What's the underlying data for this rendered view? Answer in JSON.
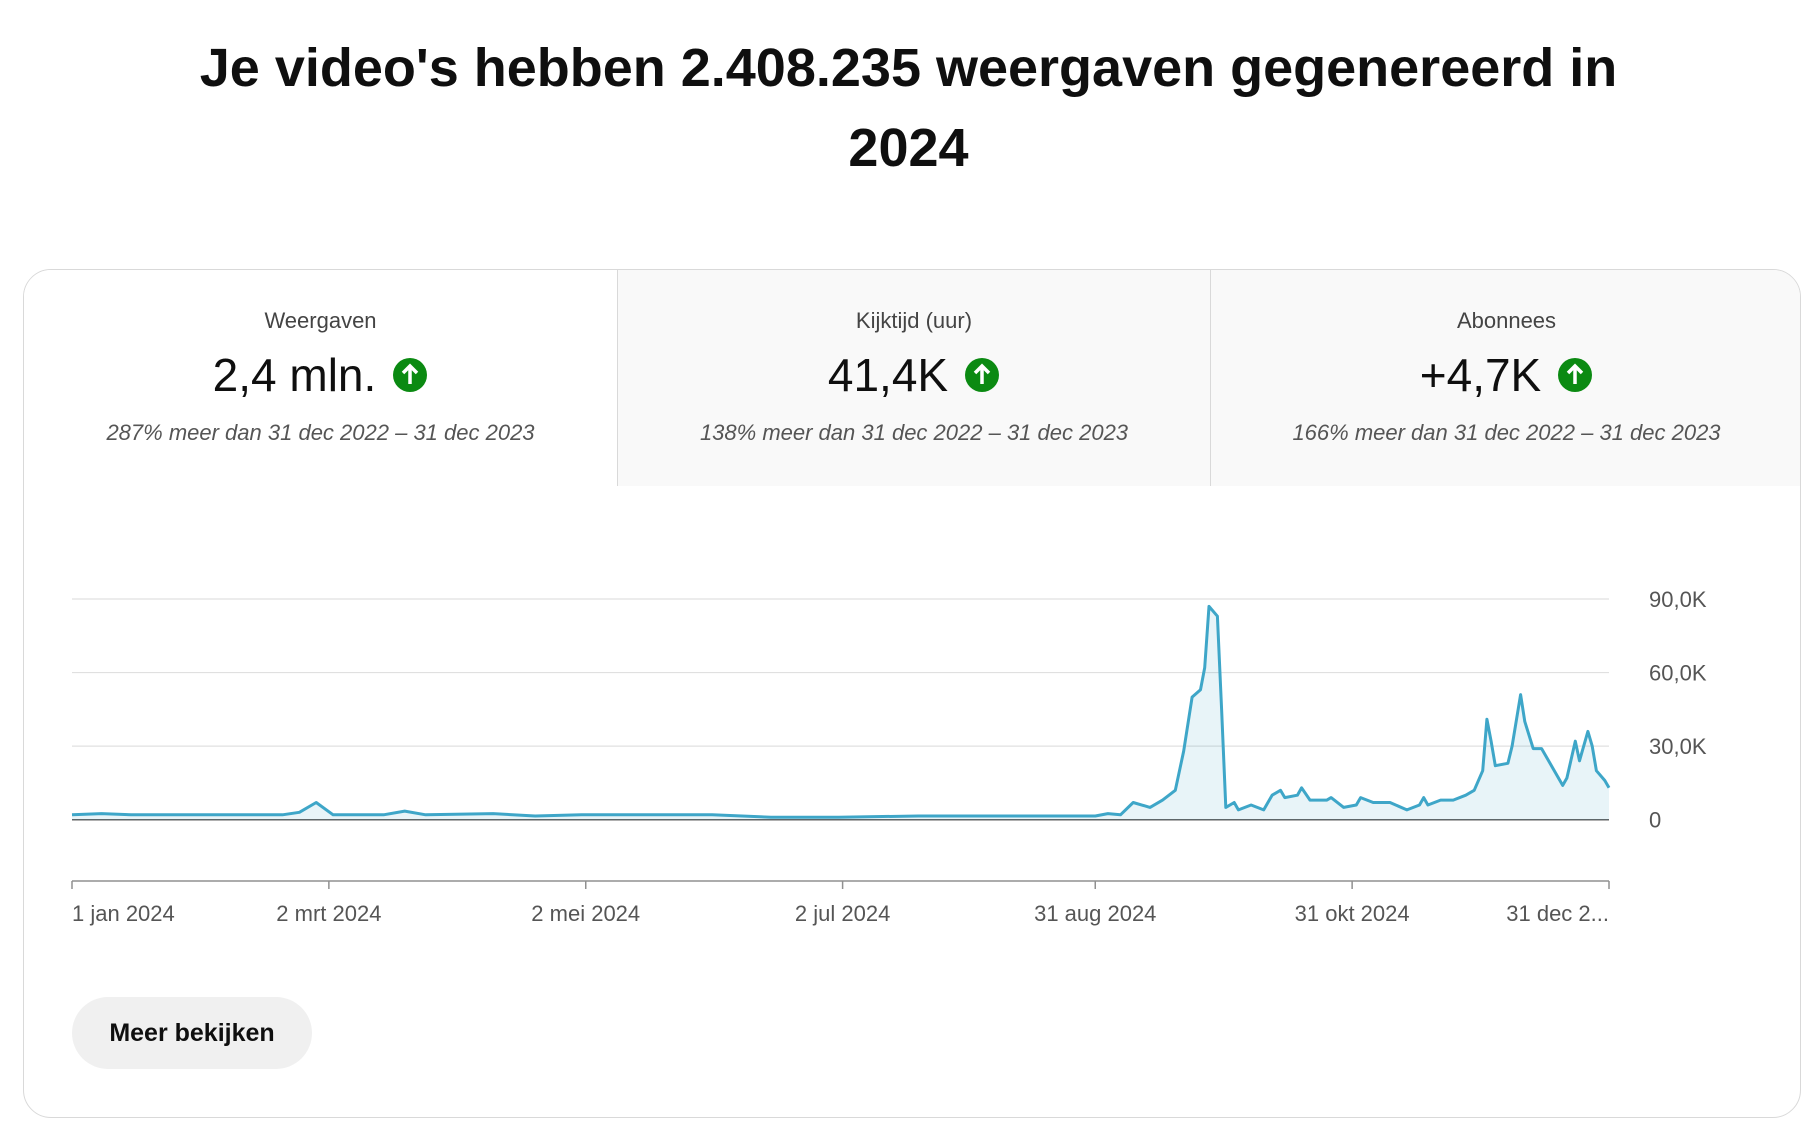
{
  "title": "Je video's hebben 2.408.235 weergaven gegenereerd in 2024",
  "tabs": [
    {
      "label": "Weergaven",
      "value": "2,4 mln.",
      "comparison": "287% meer dan 31 dec 2022 – 31 dec 2023"
    },
    {
      "label": "Kijktijd (uur)",
      "value": "41,4K",
      "comparison": "138% meer dan 31 dec 2022 – 31 dec 2023"
    },
    {
      "label": "Abonnees",
      "value": "+4,7K",
      "comparison": "166% meer dan 31 dec 2022 – 31 dec 2023"
    }
  ],
  "chart_data": {
    "type": "line",
    "color": "#3ea6c8",
    "grid": true,
    "x": [
      "2024-01-01",
      "2024-01-08",
      "2024-01-15",
      "2024-02-01",
      "2024-02-20",
      "2024-02-24",
      "2024-02-28",
      "2024-03-03",
      "2024-03-15",
      "2024-03-20",
      "2024-03-25",
      "2024-04-10",
      "2024-04-20",
      "2024-05-01",
      "2024-06-01",
      "2024-06-15",
      "2024-07-01",
      "2024-07-20",
      "2024-08-01",
      "2024-08-20",
      "2024-08-31",
      "2024-09-03",
      "2024-09-06",
      "2024-09-09",
      "2024-09-13",
      "2024-09-16",
      "2024-09-19",
      "2024-09-21",
      "2024-09-23",
      "2024-09-25",
      "2024-09-26",
      "2024-09-27",
      "2024-09-29",
      "2024-09-30",
      "2024-10-01",
      "2024-10-03",
      "2024-10-04",
      "2024-10-07",
      "2024-10-10",
      "2024-10-12",
      "2024-10-14",
      "2024-10-15",
      "2024-10-18",
      "2024-10-19",
      "2024-10-21",
      "2024-10-25",
      "2024-10-26",
      "2024-10-29",
      "2024-11-01",
      "2024-11-02",
      "2024-11-05",
      "2024-11-09",
      "2024-11-13",
      "2024-11-16",
      "2024-11-17",
      "2024-11-18",
      "2024-11-21",
      "2024-11-24",
      "2024-11-27",
      "2024-11-29",
      "2024-12-01",
      "2024-12-02",
      "2024-12-03",
      "2024-12-04",
      "2024-12-07",
      "2024-12-08",
      "2024-12-10",
      "2024-12-11",
      "2024-12-13",
      "2024-12-15",
      "2024-12-18",
      "2024-12-20",
      "2024-12-21",
      "2024-12-23",
      "2024-12-24",
      "2024-12-26",
      "2024-12-27",
      "2024-12-28",
      "2024-12-30",
      "2024-12-31"
    ],
    "values": [
      2000,
      2500,
      2000,
      2000,
      2000,
      3000,
      7000,
      2000,
      2000,
      3500,
      2000,
      2500,
      1500,
      2000,
      2000,
      1000,
      1000,
      1500,
      1500,
      1500,
      1500,
      2500,
      2000,
      7000,
      5000,
      8000,
      12000,
      28000,
      50000,
      53000,
      62000,
      87000,
      83000,
      45000,
      5000,
      7000,
      4000,
      6000,
      4000,
      10000,
      12000,
      9000,
      10000,
      13000,
      8000,
      8000,
      9000,
      5000,
      6000,
      9000,
      7000,
      7000,
      4000,
      6000,
      9000,
      6000,
      8000,
      8000,
      10000,
      12000,
      20000,
      41000,
      32000,
      22000,
      23000,
      30000,
      51000,
      40000,
      29000,
      29000,
      20000,
      14000,
      17000,
      32000,
      24000,
      36000,
      30000,
      20000,
      16000,
      13000
    ],
    "xlim": [
      "2024-01-01",
      "2024-12-31"
    ],
    "xticks": [
      {
        "value": "2024-01-01",
        "label": "1 jan 2024"
      },
      {
        "value": "2024-03-02",
        "label": "2 mrt 2024"
      },
      {
        "value": "2024-05-02",
        "label": "2 mei 2024"
      },
      {
        "value": "2024-07-02",
        "label": "2 jul 2024"
      },
      {
        "value": "2024-08-31",
        "label": "31 aug 2024"
      },
      {
        "value": "2024-10-31",
        "label": "31 okt 2024"
      },
      {
        "value": "2024-12-31",
        "label": "31 dec 2..."
      }
    ],
    "ylim": [
      -25000,
      90000
    ],
    "yticks": [
      0,
      {
        "value": 30000,
        "label": "30,0K"
      },
      {
        "value": 60000,
        "label": "60,0K"
      },
      {
        "value": 90000,
        "label": "90,0K"
      }
    ]
  },
  "button": "Meer bekijken"
}
